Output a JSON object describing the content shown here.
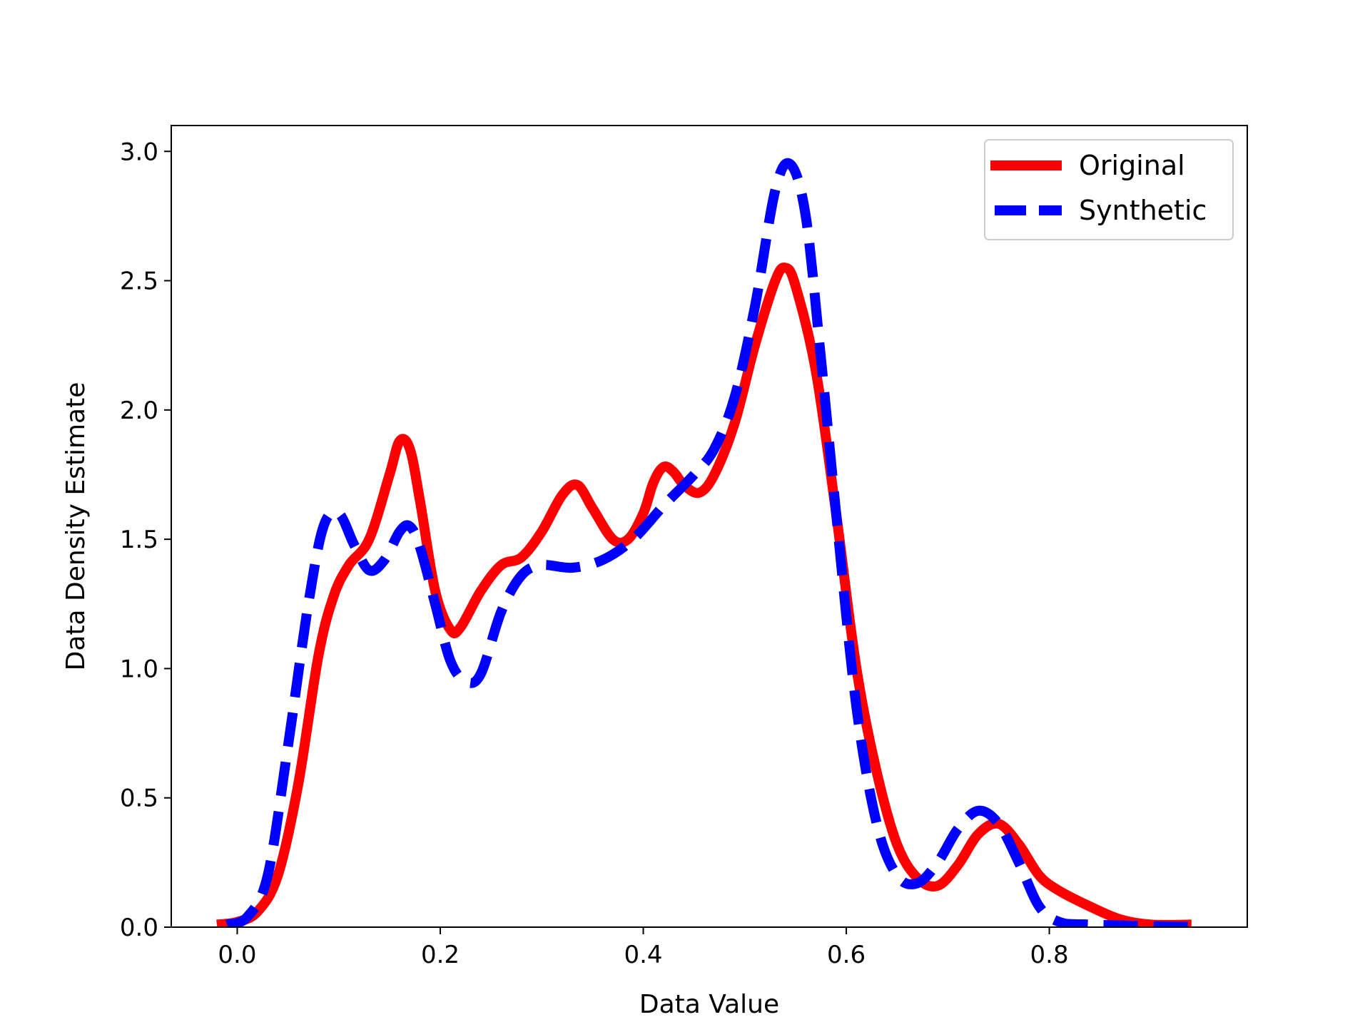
{
  "chart_data": {
    "type": "line",
    "title": "",
    "xlabel": "Data Value",
    "ylabel": "Data Density Estimate",
    "xlim": [
      -0.065,
      0.995
    ],
    "ylim": [
      0.0,
      3.1
    ],
    "xticks": [
      0.0,
      0.2,
      0.4,
      0.6,
      0.8
    ],
    "xtick_labels": [
      "0.0",
      "0.2",
      "0.4",
      "0.6",
      "0.8"
    ],
    "yticks": [
      0.0,
      0.5,
      1.0,
      1.5,
      2.0,
      2.5,
      3.0
    ],
    "ytick_labels": [
      "0.0",
      "0.5",
      "1.0",
      "1.5",
      "2.0",
      "2.5",
      "3.0"
    ],
    "grid": false,
    "legend_position": "top-right",
    "series": [
      {
        "name": "Original",
        "color": "#ff0000",
        "style": "solid",
        "points": [
          [
            -0.02,
            0.01
          ],
          [
            0.0,
            0.02
          ],
          [
            0.02,
            0.06
          ],
          [
            0.04,
            0.2
          ],
          [
            0.06,
            0.55
          ],
          [
            0.08,
            1.05
          ],
          [
            0.095,
            1.28
          ],
          [
            0.11,
            1.4
          ],
          [
            0.13,
            1.5
          ],
          [
            0.15,
            1.75
          ],
          [
            0.16,
            1.88
          ],
          [
            0.17,
            1.85
          ],
          [
            0.18,
            1.65
          ],
          [
            0.195,
            1.3
          ],
          [
            0.21,
            1.15
          ],
          [
            0.22,
            1.16
          ],
          [
            0.24,
            1.3
          ],
          [
            0.26,
            1.4
          ],
          [
            0.28,
            1.43
          ],
          [
            0.3,
            1.53
          ],
          [
            0.32,
            1.67
          ],
          [
            0.335,
            1.71
          ],
          [
            0.35,
            1.62
          ],
          [
            0.37,
            1.5
          ],
          [
            0.385,
            1.5
          ],
          [
            0.4,
            1.6
          ],
          [
            0.41,
            1.72
          ],
          [
            0.42,
            1.78
          ],
          [
            0.43,
            1.76
          ],
          [
            0.44,
            1.71
          ],
          [
            0.455,
            1.68
          ],
          [
            0.47,
            1.75
          ],
          [
            0.49,
            1.95
          ],
          [
            0.51,
            2.25
          ],
          [
            0.53,
            2.5
          ],
          [
            0.54,
            2.55
          ],
          [
            0.55,
            2.48
          ],
          [
            0.57,
            2.15
          ],
          [
            0.59,
            1.6
          ],
          [
            0.61,
            1.0
          ],
          [
            0.63,
            0.6
          ],
          [
            0.65,
            0.32
          ],
          [
            0.67,
            0.19
          ],
          [
            0.69,
            0.16
          ],
          [
            0.71,
            0.24
          ],
          [
            0.73,
            0.36
          ],
          [
            0.75,
            0.4
          ],
          [
            0.77,
            0.32
          ],
          [
            0.79,
            0.2
          ],
          [
            0.81,
            0.14
          ],
          [
            0.84,
            0.08
          ],
          [
            0.87,
            0.03
          ],
          [
            0.9,
            0.01
          ],
          [
            0.94,
            0.01
          ]
        ]
      },
      {
        "name": "Synthetic",
        "color": "#0000ff",
        "style": "dashed",
        "points": [
          [
            -0.01,
            0.01
          ],
          [
            0.01,
            0.04
          ],
          [
            0.03,
            0.2
          ],
          [
            0.05,
            0.7
          ],
          [
            0.07,
            1.25
          ],
          [
            0.085,
            1.55
          ],
          [
            0.1,
            1.6
          ],
          [
            0.115,
            1.48
          ],
          [
            0.13,
            1.38
          ],
          [
            0.145,
            1.42
          ],
          [
            0.16,
            1.53
          ],
          [
            0.17,
            1.55
          ],
          [
            0.18,
            1.47
          ],
          [
            0.195,
            1.25
          ],
          [
            0.21,
            1.03
          ],
          [
            0.225,
            0.95
          ],
          [
            0.24,
            0.98
          ],
          [
            0.26,
            1.22
          ],
          [
            0.28,
            1.36
          ],
          [
            0.3,
            1.4
          ],
          [
            0.33,
            1.39
          ],
          [
            0.36,
            1.42
          ],
          [
            0.39,
            1.5
          ],
          [
            0.42,
            1.63
          ],
          [
            0.45,
            1.75
          ],
          [
            0.47,
            1.85
          ],
          [
            0.49,
            2.05
          ],
          [
            0.51,
            2.4
          ],
          [
            0.53,
            2.85
          ],
          [
            0.545,
            2.95
          ],
          [
            0.56,
            2.75
          ],
          [
            0.575,
            2.2
          ],
          [
            0.59,
            1.6
          ],
          [
            0.61,
            0.85
          ],
          [
            0.63,
            0.4
          ],
          [
            0.65,
            0.2
          ],
          [
            0.67,
            0.17
          ],
          [
            0.69,
            0.25
          ],
          [
            0.71,
            0.38
          ],
          [
            0.73,
            0.45
          ],
          [
            0.75,
            0.4
          ],
          [
            0.77,
            0.25
          ],
          [
            0.79,
            0.08
          ],
          [
            0.81,
            0.02
          ],
          [
            0.84,
            0.01
          ],
          [
            0.95,
            0.0
          ]
        ]
      }
    ]
  }
}
